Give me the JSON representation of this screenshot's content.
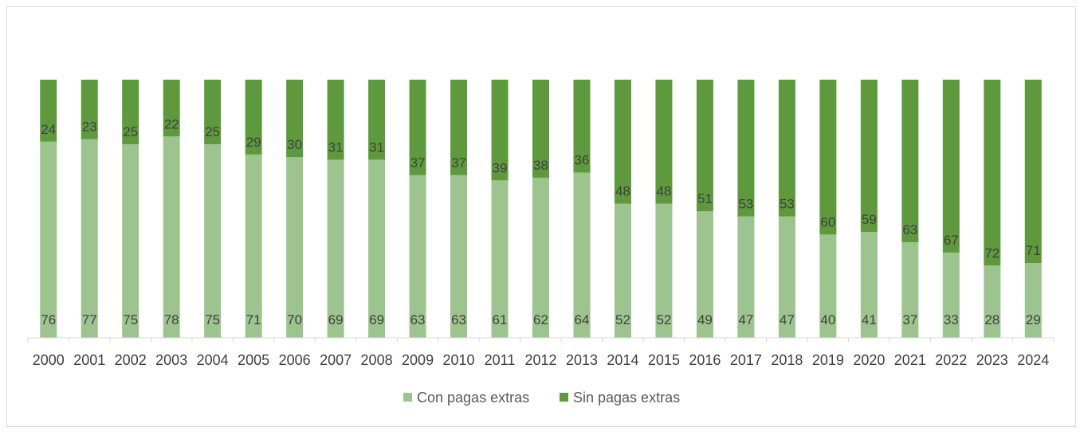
{
  "chart_data": {
    "type": "bar",
    "stacked": true,
    "percent_stacked": true,
    "categories": [
      "2000",
      "2001",
      "2002",
      "2003",
      "2004",
      "2005",
      "2006",
      "2007",
      "2008",
      "2009",
      "2010",
      "2011",
      "2012",
      "2013",
      "2014",
      "2015",
      "2016",
      "2017",
      "2018",
      "2019",
      "2020",
      "2021",
      "2022",
      "2023",
      "2024"
    ],
    "series": [
      {
        "name": "Con pagas extras",
        "color": "#9dc38e",
        "values": [
          76,
          77,
          75,
          78,
          75,
          71,
          70,
          69,
          69,
          63,
          63,
          61,
          62,
          64,
          52,
          52,
          49,
          47,
          47,
          40,
          41,
          37,
          33,
          28,
          29
        ]
      },
      {
        "name": "Sin pagas extras",
        "color": "#5e9a3d",
        "values": [
          24,
          23,
          25,
          22,
          25,
          29,
          30,
          31,
          31,
          37,
          37,
          39,
          38,
          36,
          48,
          48,
          51,
          53,
          53,
          60,
          59,
          63,
          67,
          72,
          71
        ]
      }
    ],
    "title": "",
    "xlabel": "",
    "ylabel": "",
    "ylim": [
      0,
      100
    ],
    "grid": false,
    "legend_position": "bottom"
  }
}
